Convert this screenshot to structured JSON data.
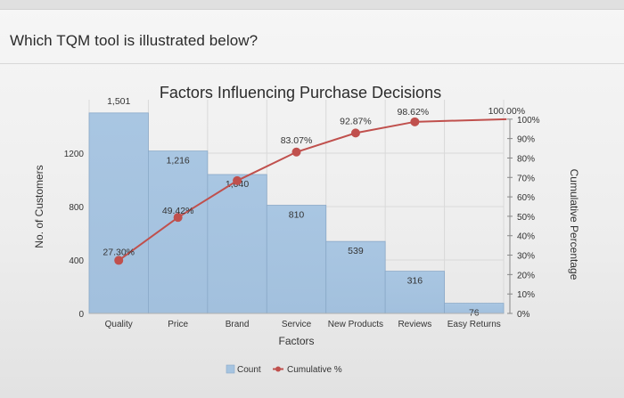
{
  "question": "Which TQM tool is illustrated below?",
  "chart_data": {
    "type": "bar",
    "title": "Factors Influencing Purchase Decisions",
    "xlabel": "Factors",
    "ylabel": "No. of Customers",
    "y2label": "Cumulative Percentage",
    "categories": [
      "Quality",
      "Price",
      "Brand",
      "Service",
      "New Products",
      "Reviews",
      "Easy Returns"
    ],
    "series": [
      {
        "name": "Count",
        "type": "bar",
        "values": [
          1501,
          1216,
          1040,
          810,
          539,
          316,
          76
        ],
        "labels": [
          "1,501",
          "1,216",
          "1,040",
          "810",
          "539",
          "316",
          "76"
        ],
        "color": "#a6c4e0"
      },
      {
        "name": "Cumulative %",
        "type": "line",
        "axis": "right",
        "values": [
          27.3,
          49.42,
          68.33,
          83.07,
          92.87,
          98.62,
          100.0
        ],
        "labels": [
          "27.30%",
          "49.42%",
          "",
          "83.07%",
          "92.87%",
          "98.62%",
          "100.00%"
        ],
        "color": "#c0504d"
      }
    ],
    "yticks": [
      "0",
      "400",
      "800",
      "1200"
    ],
    "y2ticks": [
      "0%",
      "10%",
      "20%",
      "30%",
      "40%",
      "50%",
      "60%",
      "70%",
      "80%",
      "90%",
      "100%"
    ],
    "ylim": [
      0,
      1600
    ],
    "y2lim": [
      0,
      110
    ],
    "legend": "bottom"
  }
}
